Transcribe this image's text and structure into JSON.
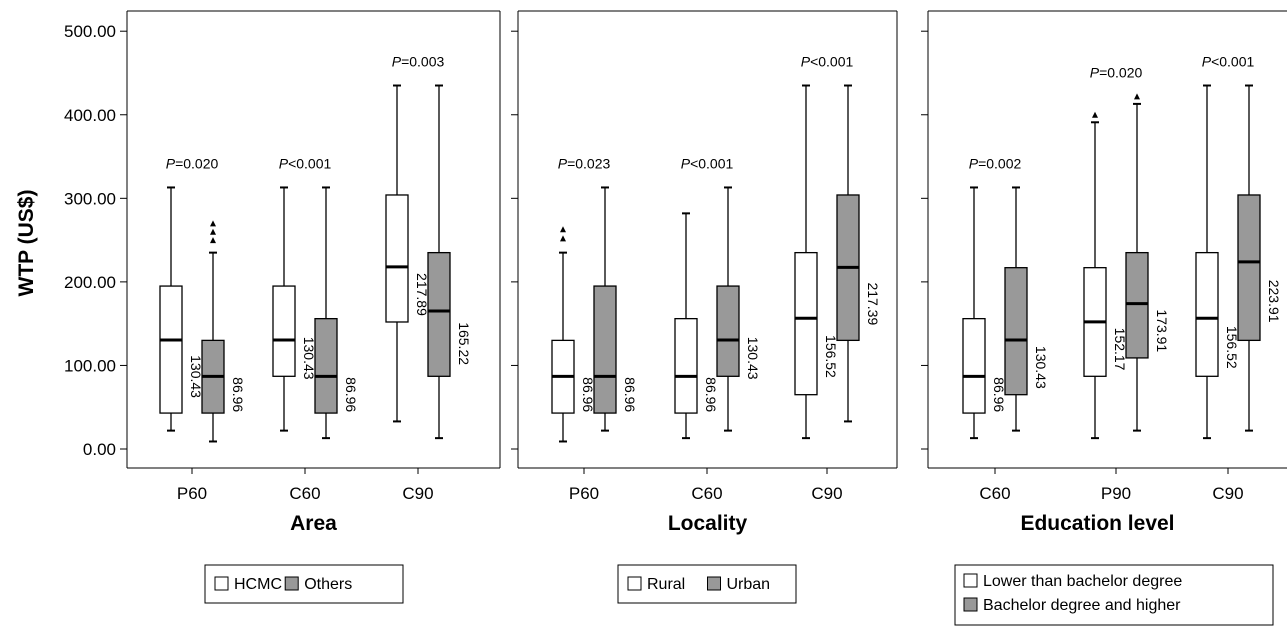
{
  "y_axis_label": "WTP (US$)",
  "colors": {
    "series1": "#ffffff",
    "series2": "#999999",
    "stroke": "#000000"
  },
  "chart_data": [
    {
      "type": "boxplot",
      "xlabel": "Area",
      "ylabel": "WTP (US$)",
      "ylim": [
        0,
        500
      ],
      "y_ticks": [
        "0.00",
        "100.00",
        "200.00",
        "300.00",
        "400.00",
        "500.00"
      ],
      "categories": [
        "P60",
        "C60",
        "C90"
      ],
      "p_values": [
        {
          "prefix": "P",
          "rest": "=0.020"
        },
        {
          "prefix": "P",
          "rest": "<0.001"
        },
        {
          "prefix": "P",
          "rest": "=0.003"
        }
      ],
      "series": [
        {
          "name": "HCMC",
          "boxes": [
            {
              "min": 22,
              "q1": 43,
              "median": 130.43,
              "q3": 195,
              "max": 313,
              "label": "130.43",
              "outliers": []
            },
            {
              "min": 22,
              "q1": 87,
              "median": 130.43,
              "q3": 195,
              "max": 313,
              "label": "130.43",
              "outliers": []
            },
            {
              "min": 33,
              "q1": 152,
              "median": 217.89,
              "q3": 304,
              "max": 435,
              "label": "217.89",
              "outliers": []
            }
          ]
        },
        {
          "name": "Others",
          "boxes": [
            {
              "min": 9,
              "q1": 43,
              "median": 86.96,
              "q3": 130,
              "max": 235,
              "label": "86.96",
              "outliers": [
                250,
                260,
                270
              ]
            },
            {
              "min": 13,
              "q1": 43,
              "median": 86.96,
              "q3": 156,
              "max": 313,
              "label": "86.96",
              "outliers": []
            },
            {
              "min": 13,
              "q1": 87,
              "median": 165.22,
              "q3": 235,
              "max": 435,
              "label": "165.22",
              "outliers": []
            }
          ]
        }
      ],
      "legend": [
        "HCMC",
        "Others"
      ]
    },
    {
      "type": "boxplot",
      "xlabel": "Locality",
      "ylim": [
        0,
        500
      ],
      "categories": [
        "P60",
        "C60",
        "C90"
      ],
      "p_values": [
        {
          "prefix": "P",
          "rest": "=0.023"
        },
        {
          "prefix": "P",
          "rest": "<0.001"
        },
        {
          "prefix": "P",
          "rest": "<0.001"
        }
      ],
      "series": [
        {
          "name": "Rural",
          "boxes": [
            {
              "min": 9,
              "q1": 43,
              "median": 86.96,
              "q3": 130,
              "max": 235,
              "label": "86.96",
              "outliers": [
                252,
                263
              ]
            },
            {
              "min": 13,
              "q1": 43,
              "median": 86.96,
              "q3": 156,
              "max": 282,
              "label": "86.96",
              "outliers": []
            },
            {
              "min": 13,
              "q1": 65,
              "median": 156.52,
              "q3": 235,
              "max": 435,
              "label": "156.52",
              "outliers": []
            }
          ]
        },
        {
          "name": "Urban",
          "boxes": [
            {
              "min": 22,
              "q1": 43,
              "median": 86.96,
              "q3": 195,
              "max": 313,
              "label": "86.96",
              "outliers": []
            },
            {
              "min": 22,
              "q1": 87,
              "median": 130.43,
              "q3": 195,
              "max": 313,
              "label": "130.43",
              "outliers": []
            },
            {
              "min": 33,
              "q1": 130,
              "median": 217.39,
              "q3": 304,
              "max": 435,
              "label": "217.39",
              "outliers": []
            }
          ]
        }
      ],
      "legend": [
        "Rural",
        "Urban"
      ]
    },
    {
      "type": "boxplot",
      "xlabel": "Education level",
      "ylim": [
        0,
        500
      ],
      "categories": [
        "C60",
        "P90",
        "C90"
      ],
      "p_values": [
        {
          "prefix": "P",
          "rest": "=0.002"
        },
        {
          "prefix": "P",
          "rest": "=0.020"
        },
        {
          "prefix": "P",
          "rest": "<0.001"
        }
      ],
      "series": [
        {
          "name": "Lower than bachelor degree",
          "boxes": [
            {
              "min": 13,
              "q1": 43,
              "median": 86.96,
              "q3": 156,
              "max": 313,
              "label": "86.96",
              "outliers": []
            },
            {
              "min": 13,
              "q1": 87,
              "median": 152.17,
              "q3": 217,
              "max": 391,
              "label": "152.17",
              "outliers": [
                400
              ]
            },
            {
              "min": 13,
              "q1": 87,
              "median": 156.52,
              "q3": 235,
              "max": 435,
              "label": "156.52",
              "outliers": []
            }
          ]
        },
        {
          "name": "Bachelor degree and higher",
          "boxes": [
            {
              "min": 22,
              "q1": 65,
              "median": 130.43,
              "q3": 217,
              "max": 313,
              "label": "130.43",
              "outliers": []
            },
            {
              "min": 22,
              "q1": 109,
              "median": 173.91,
              "q3": 235,
              "max": 413,
              "label": "173.91",
              "outliers": [
                422
              ]
            },
            {
              "min": 22,
              "q1": 130,
              "median": 223.91,
              "q3": 304,
              "max": 435,
              "label": "223.91",
              "outliers": []
            }
          ]
        }
      ],
      "legend": [
        "Lower than bachelor degree",
        "Bachelor degree and higher"
      ]
    }
  ]
}
